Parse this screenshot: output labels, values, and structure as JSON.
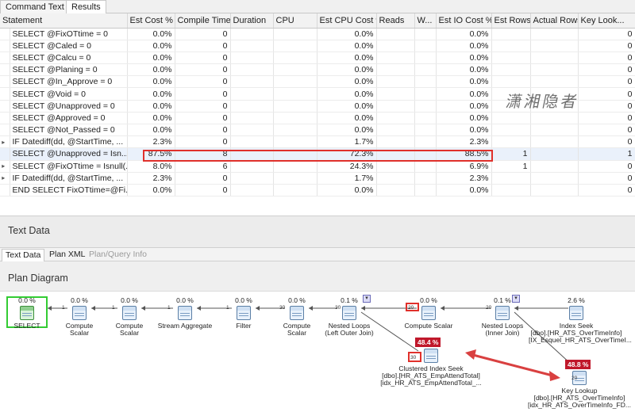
{
  "tabs": [
    {
      "label": "Command Text",
      "active": false
    },
    {
      "label": "Results",
      "active": true
    }
  ],
  "grid": {
    "columns": [
      "Statement",
      "Est Cost %",
      "Compile Time",
      "Duration",
      "CPU",
      "Est CPU Cost %",
      "Reads",
      "W...",
      "Est IO Cost %",
      "Est Rows",
      "Actual Rows",
      "Key Look..."
    ],
    "rows": [
      {
        "expander": "",
        "statement": "SELECT @FixOTtime = 0",
        "est_cost": "0.0%",
        "compile": "0",
        "cpu_cost": "0.0%",
        "io_cost": "0.0%",
        "est_rows": "",
        "key": "0"
      },
      {
        "expander": "",
        "statement": "SELECT @Caled = 0",
        "est_cost": "0.0%",
        "compile": "0",
        "cpu_cost": "0.0%",
        "io_cost": "0.0%",
        "est_rows": "",
        "key": "0"
      },
      {
        "expander": "",
        "statement": "SELECT @Calcu = 0",
        "est_cost": "0.0%",
        "compile": "0",
        "cpu_cost": "0.0%",
        "io_cost": "0.0%",
        "est_rows": "",
        "key": "0"
      },
      {
        "expander": "",
        "statement": "SELECT @Planing = 0",
        "est_cost": "0.0%",
        "compile": "0",
        "cpu_cost": "0.0%",
        "io_cost": "0.0%",
        "est_rows": "",
        "key": "0"
      },
      {
        "expander": "",
        "statement": "SELECT @In_Approve = 0",
        "est_cost": "0.0%",
        "compile": "0",
        "cpu_cost": "0.0%",
        "io_cost": "0.0%",
        "est_rows": "",
        "key": "0"
      },
      {
        "expander": "",
        "statement": "SELECT @Void = 0",
        "est_cost": "0.0%",
        "compile": "0",
        "cpu_cost": "0.0%",
        "io_cost": "0.0%",
        "est_rows": "",
        "key": "0"
      },
      {
        "expander": "",
        "statement": "SELECT @Unapproved = 0",
        "est_cost": "0.0%",
        "compile": "0",
        "cpu_cost": "0.0%",
        "io_cost": "0.0%",
        "est_rows": "",
        "key": "0"
      },
      {
        "expander": "",
        "statement": "SELECT @Approved = 0",
        "est_cost": "0.0%",
        "compile": "0",
        "cpu_cost": "0.0%",
        "io_cost": "0.0%",
        "est_rows": "",
        "key": "0"
      },
      {
        "expander": "",
        "statement": "SELECT @Not_Passed = 0",
        "est_cost": "0.0%",
        "compile": "0",
        "cpu_cost": "0.0%",
        "io_cost": "0.0%",
        "est_rows": "",
        "key": "0"
      },
      {
        "expander": "▸",
        "statement": "IF Datediff(dd, @StartTime, ...",
        "est_cost": "2.3%",
        "compile": "0",
        "cpu_cost": "1.7%",
        "io_cost": "2.3%",
        "est_rows": "",
        "key": "0"
      },
      {
        "expander": "",
        "statement": "SELECT @Unapproved = Isn...",
        "est_cost": "87.5%",
        "compile": "8",
        "cpu_cost": "72.3%",
        "io_cost": "88.5%",
        "est_rows": "1",
        "key": "1"
      },
      {
        "expander": "▸",
        "statement": "SELECT @FixOTtime = Isnull(...",
        "est_cost": "8.0%",
        "compile": "6",
        "cpu_cost": "24.3%",
        "io_cost": "6.9%",
        "est_rows": "1",
        "key": "0"
      },
      {
        "expander": "▸",
        "statement": "IF Datediff(dd, @StartTime, ...",
        "est_cost": "2.3%",
        "compile": "0",
        "cpu_cost": "1.7%",
        "io_cost": "2.3%",
        "est_rows": "",
        "key": "0"
      },
      {
        "expander": "",
        "statement": "END SELECT FixOTtime=@Fi...",
        "est_cost": "0.0%",
        "compile": "0",
        "cpu_cost": "0.0%",
        "io_cost": "0.0%",
        "est_rows": "",
        "key": "0"
      }
    ]
  },
  "text_data": {
    "title": "Text Data"
  },
  "sub_tabs": [
    {
      "label": "Text Data",
      "active": true,
      "disabled": false
    },
    {
      "label": "Plan XML",
      "active": false,
      "disabled": false
    },
    {
      "label": "Plan/Query Info",
      "active": false,
      "disabled": true
    }
  ],
  "plan": {
    "title": "Plan Diagram",
    "nodes": [
      {
        "id": "select",
        "pct": "0.0 %",
        "label": "SELECT",
        "label2": "",
        "label3": ""
      },
      {
        "id": "cs1",
        "pct": "0.0 %",
        "label": "Compute Scalar",
        "label2": "",
        "label3": ""
      },
      {
        "id": "cs2",
        "pct": "0.0 %",
        "label": "Compute Scalar",
        "label2": "",
        "label3": ""
      },
      {
        "id": "agg",
        "pct": "0.0 %",
        "label": "Stream Aggregate",
        "label2": "",
        "label3": ""
      },
      {
        "id": "filter",
        "pct": "0.0 %",
        "label": "Filter",
        "label2": "",
        "label3": ""
      },
      {
        "id": "cs3",
        "pct": "0.0 %",
        "label": "Compute Scalar",
        "label2": "",
        "label3": ""
      },
      {
        "id": "nl1",
        "pct": "0.1 %",
        "label": "Nested Loops",
        "label2": "(Left Outer Join)",
        "label3": ""
      },
      {
        "id": "cs4",
        "pct": "0.0 %",
        "label": "Compute Scalar",
        "label2": "",
        "label3": ""
      },
      {
        "id": "nl2",
        "pct": "0.1 %",
        "label": "Nested Loops",
        "label2": "(Inner Join)",
        "label3": ""
      },
      {
        "id": "seek",
        "pct": "2.6 %",
        "label": "Index Seek",
        "label2": "[dbo].[HR_ATS_OverTimeInfo]",
        "label3": "[IX_Esquel_HR_ATS_OverTimeI..."
      },
      {
        "id": "cis",
        "pct": "48.4 %",
        "label": "Clustered Index Seek",
        "label2": "[dbo].[HR_ATS_EmpAttendTotal]",
        "label3": "[idx_HR_ATS_EmpAttendTotal_..."
      },
      {
        "id": "kl",
        "pct": "48.8 %",
        "label": "Key Lookup",
        "label2": "[dbo].[HR_ATS_OverTimeInfo]",
        "label3": "[idx_HR_ATS_OverTimeInfo_FD..."
      }
    ],
    "row_counts": {
      "r1": "1",
      "r2": "1",
      "r3": "1",
      "r4": "1",
      "r5": "30",
      "r6": "30",
      "r7": "20",
      "r8": "20",
      "r9": "30",
      "r10": "20"
    },
    "dropdown_glyph": "▾"
  },
  "watermark": "潇湘隐者",
  "colors": {
    "highlight": "#e0302b",
    "badge": "#c0182b",
    "select_border": "#33cc33"
  }
}
